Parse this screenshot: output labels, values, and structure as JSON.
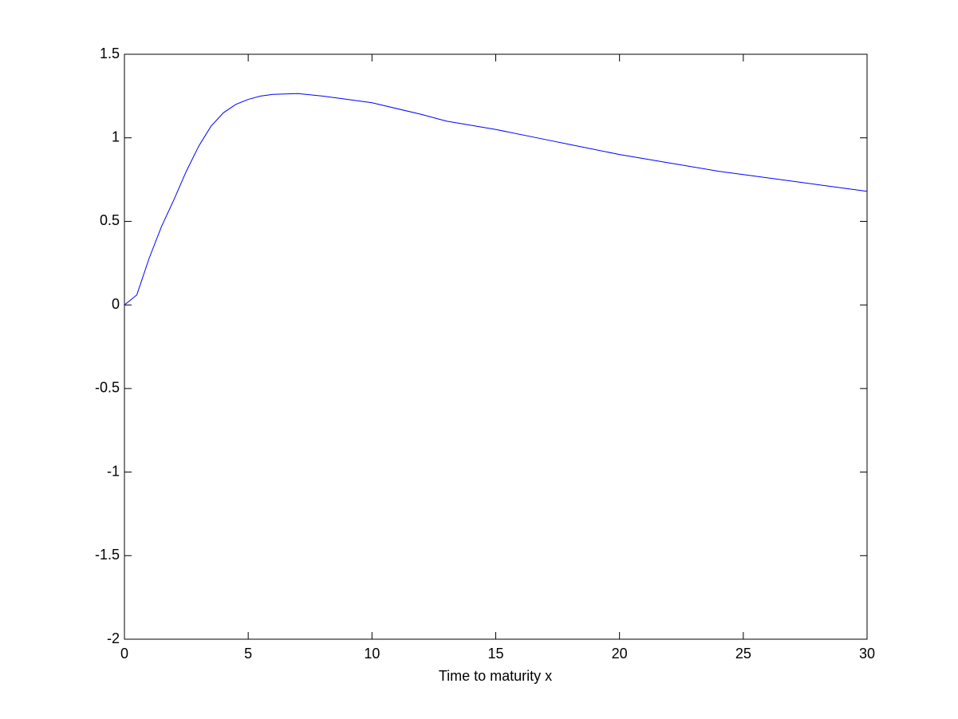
{
  "chart_data": {
    "type": "line",
    "x_label": "Time to maturity x",
    "x": [
      0,
      0.5,
      1,
      1.5,
      2,
      2.5,
      3,
      3.5,
      4,
      4.5,
      5,
      5.5,
      6,
      7,
      8,
      9,
      10,
      12,
      13,
      15,
      17,
      18,
      20,
      22,
      24,
      25,
      27,
      28,
      30
    ],
    "series": [
      {
        "name": "curve",
        "color": "#0000ff",
        "values": [
          0,
          0.06,
          0.28,
          0.47,
          0.63,
          0.8,
          0.95,
          1.07,
          1.15,
          1.2,
          1.23,
          1.25,
          1.26,
          1.265,
          1.25,
          1.23,
          1.21,
          1.14,
          1.1,
          1.05,
          0.99,
          0.96,
          0.9,
          0.85,
          0.8,
          0.78,
          0.74,
          0.72,
          0.68
        ]
      }
    ],
    "xlim": [
      0,
      30
    ],
    "ylim": [
      -2,
      1.5
    ],
    "xticks": [
      0,
      5,
      10,
      15,
      20,
      25,
      30
    ],
    "yticks": [
      -2,
      -1.5,
      -1,
      -0.5,
      0,
      0.5,
      1,
      1.5
    ]
  }
}
